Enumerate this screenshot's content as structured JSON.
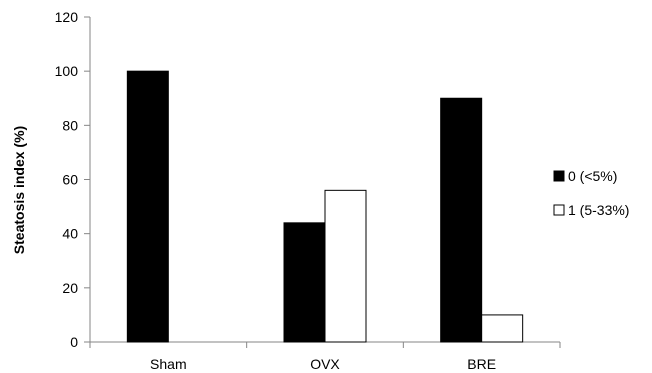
{
  "chart_data": {
    "type": "bar",
    "title": "",
    "xlabel": "",
    "ylabel": "Steatosis index (%)",
    "categories": [
      "Sham",
      "OVX",
      "BRE"
    ],
    "series": [
      {
        "name": "0 (<5%)",
        "values": [
          100,
          44,
          90
        ],
        "color": "#000000"
      },
      {
        "name": "1 (5-33%)",
        "values": [
          0,
          56,
          10
        ],
        "color": "#ffffff"
      }
    ],
    "ylim": [
      0,
      120
    ],
    "yticks": [
      0,
      20,
      40,
      60,
      80,
      100,
      120
    ],
    "grid": false,
    "legend": "right"
  }
}
